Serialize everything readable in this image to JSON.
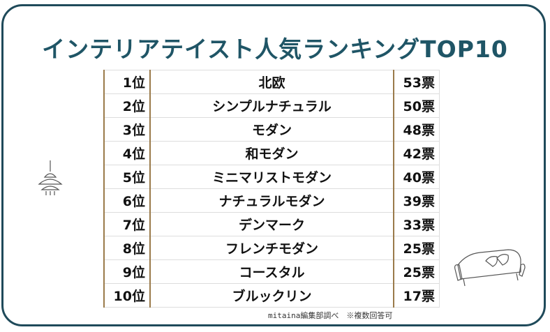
{
  "header": {
    "title": "インテリアテイスト人気ランキングTOP10"
  },
  "table": {
    "rows": [
      [
        "1位",
        "北欧",
        "53票"
      ],
      [
        "2位",
        "シンプルナチュラル",
        "50票"
      ],
      [
        "3位",
        "モダン",
        "48票"
      ],
      [
        "4位",
        "和モダン",
        "42票"
      ],
      [
        "5位",
        "ミニマリストモダン",
        "40票"
      ],
      [
        "6位",
        "ナチュラルモダン",
        "39票"
      ],
      [
        "7位",
        "デンマーク",
        "33票"
      ],
      [
        "8位",
        "フレンチモダン",
        "25票"
      ],
      [
        "9位",
        "コースタル",
        "25票"
      ],
      [
        "10位",
        "ブルックリン",
        "17票"
      ]
    ]
  },
  "footnote": "mitaina編集部調べ　※複数回答可"
}
